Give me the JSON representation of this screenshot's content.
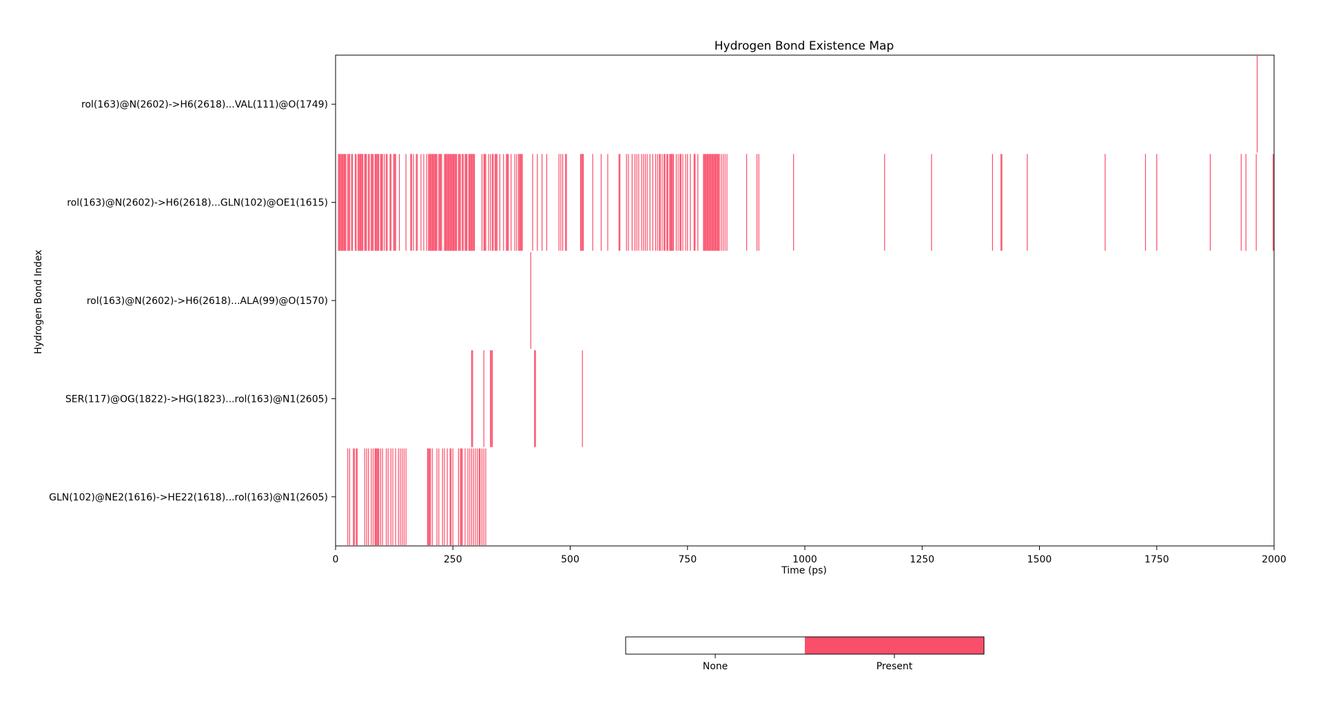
{
  "chart_data": {
    "type": "heatmap",
    "title": "Hydrogen Bond Existence Map",
    "xlabel": "Time (ps)",
    "ylabel": "Hydrogen Bond Index",
    "xlim": [
      0,
      2000
    ],
    "xticks": [
      0,
      250,
      500,
      750,
      1000,
      1250,
      1500,
      1750,
      2000
    ],
    "colors": {
      "none": "#ffffff",
      "present": "#f94f6a"
    },
    "legend": {
      "labels": [
        "None",
        "Present"
      ],
      "placement": "bottom"
    },
    "rows": [
      {
        "label": "rol(163)@N(2602)->H6(2618)...VAL(111)@O(1749)",
        "present_times": [
          1964
        ]
      },
      {
        "label": "rol(163)@N(2602)->H6(2618)...GLN(102)@OE1(1615)",
        "present_times": [
          6,
          8,
          10,
          12,
          14,
          16,
          18,
          20,
          22,
          26,
          28,
          30,
          34,
          36,
          42,
          44,
          48,
          50,
          52,
          54,
          56,
          58,
          62,
          64,
          66,
          70,
          72,
          76,
          78,
          80,
          84,
          86,
          88,
          90,
          92,
          96,
          98,
          100,
          104,
          108,
          110,
          116,
          118,
          124,
          126,
          128,
          136,
          150,
          160,
          162,
          166,
          172,
          174,
          182,
          188,
          194,
          198,
          200,
          202,
          204,
          206,
          208,
          210,
          212,
          214,
          216,
          220,
          222,
          224,
          226,
          232,
          234,
          236,
          238,
          240,
          242,
          244,
          246,
          248,
          250,
          252,
          254,
          256,
          258,
          262,
          264,
          266,
          270,
          272,
          276,
          278,
          280,
          284,
          286,
          288,
          290,
          292,
          294,
          296,
          312,
          316,
          318,
          320,
          326,
          330,
          334,
          336,
          340,
          342,
          344,
          350,
          358,
          364,
          366,
          368,
          374,
          382,
          386,
          390,
          392,
          394,
          396,
          398,
          420,
          430,
          440,
          450,
          476,
          480,
          484,
          490,
          492,
          522,
          524,
          526,
          528,
          548,
          566,
          580,
          604,
          606,
          620,
          624,
          632,
          638,
          642,
          646,
          652,
          656,
          660,
          664,
          670,
          676,
          682,
          686,
          690,
          692,
          696,
          700,
          702,
          706,
          708,
          712,
          714,
          716,
          718,
          720,
          726,
          730,
          734,
          736,
          740,
          746,
          750,
          756,
          764,
          766,
          772,
          784,
          786,
          788,
          790,
          792,
          794,
          796,
          798,
          800,
          802,
          804,
          806,
          808,
          810,
          812,
          814,
          816,
          818,
          822,
          826,
          830,
          834,
          876,
          898,
          902,
          976,
          1170,
          1270,
          1400,
          1418,
          1420,
          1474,
          1640,
          1726,
          1750,
          1864,
          1930,
          1940,
          1962,
          1998,
          2000
        ]
      },
      {
        "label": "rol(163)@N(2602)->H6(2618)...ALA(99)@O(1570)",
        "present_times": [
          416
        ]
      },
      {
        "label": "SER(117)@OG(1822)->HG(1823)...rol(163)@N1(2605)",
        "present_times": [
          290,
          292,
          316,
          330,
          332,
          334,
          424,
          426,
          526
        ]
      },
      {
        "label": "GLN(102)@NE2(1616)->HE22(1618)...rol(163)@N1(2605)",
        "present_times": [
          26,
          30,
          38,
          40,
          44,
          46,
          62,
          66,
          70,
          76,
          80,
          84,
          86,
          88,
          90,
          92,
          96,
          100,
          108,
          112,
          118,
          122,
          128,
          134,
          138,
          142,
          146,
          150,
          196,
          198,
          200,
          202,
          206,
          216,
          220,
          228,
          232,
          238,
          244,
          246,
          250,
          262,
          266,
          268,
          270,
          276,
          282,
          286,
          290,
          294,
          298,
          302,
          306,
          308,
          312,
          316,
          320
        ]
      }
    ]
  }
}
